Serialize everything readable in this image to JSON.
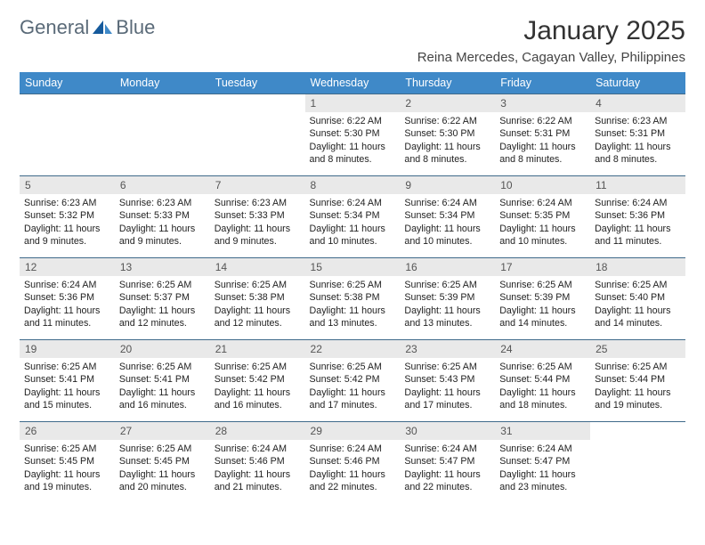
{
  "brand": {
    "name1": "General",
    "name2": "Blue"
  },
  "title": "January 2025",
  "location": "Reina Mercedes, Cagayan Valley, Philippines",
  "colors": {
    "header_bg": "#3f89c8",
    "daynum_bg": "#e9e9e9",
    "row_border": "#3f6a8a"
  },
  "weekdays": [
    "Sunday",
    "Monday",
    "Tuesday",
    "Wednesday",
    "Thursday",
    "Friday",
    "Saturday"
  ],
  "weeks": [
    [
      null,
      null,
      null,
      {
        "num": "1",
        "sunrise": "6:22 AM",
        "sunset": "5:30 PM",
        "daylight": "11 hours and 8 minutes."
      },
      {
        "num": "2",
        "sunrise": "6:22 AM",
        "sunset": "5:30 PM",
        "daylight": "11 hours and 8 minutes."
      },
      {
        "num": "3",
        "sunrise": "6:22 AM",
        "sunset": "5:31 PM",
        "daylight": "11 hours and 8 minutes."
      },
      {
        "num": "4",
        "sunrise": "6:23 AM",
        "sunset": "5:31 PM",
        "daylight": "11 hours and 8 minutes."
      }
    ],
    [
      {
        "num": "5",
        "sunrise": "6:23 AM",
        "sunset": "5:32 PM",
        "daylight": "11 hours and 9 minutes."
      },
      {
        "num": "6",
        "sunrise": "6:23 AM",
        "sunset": "5:33 PM",
        "daylight": "11 hours and 9 minutes."
      },
      {
        "num": "7",
        "sunrise": "6:23 AM",
        "sunset": "5:33 PM",
        "daylight": "11 hours and 9 minutes."
      },
      {
        "num": "8",
        "sunrise": "6:24 AM",
        "sunset": "5:34 PM",
        "daylight": "11 hours and 10 minutes."
      },
      {
        "num": "9",
        "sunrise": "6:24 AM",
        "sunset": "5:34 PM",
        "daylight": "11 hours and 10 minutes."
      },
      {
        "num": "10",
        "sunrise": "6:24 AM",
        "sunset": "5:35 PM",
        "daylight": "11 hours and 10 minutes."
      },
      {
        "num": "11",
        "sunrise": "6:24 AM",
        "sunset": "5:36 PM",
        "daylight": "11 hours and 11 minutes."
      }
    ],
    [
      {
        "num": "12",
        "sunrise": "6:24 AM",
        "sunset": "5:36 PM",
        "daylight": "11 hours and 11 minutes."
      },
      {
        "num": "13",
        "sunrise": "6:25 AM",
        "sunset": "5:37 PM",
        "daylight": "11 hours and 12 minutes."
      },
      {
        "num": "14",
        "sunrise": "6:25 AM",
        "sunset": "5:38 PM",
        "daylight": "11 hours and 12 minutes."
      },
      {
        "num": "15",
        "sunrise": "6:25 AM",
        "sunset": "5:38 PM",
        "daylight": "11 hours and 13 minutes."
      },
      {
        "num": "16",
        "sunrise": "6:25 AM",
        "sunset": "5:39 PM",
        "daylight": "11 hours and 13 minutes."
      },
      {
        "num": "17",
        "sunrise": "6:25 AM",
        "sunset": "5:39 PM",
        "daylight": "11 hours and 14 minutes."
      },
      {
        "num": "18",
        "sunrise": "6:25 AM",
        "sunset": "5:40 PM",
        "daylight": "11 hours and 14 minutes."
      }
    ],
    [
      {
        "num": "19",
        "sunrise": "6:25 AM",
        "sunset": "5:41 PM",
        "daylight": "11 hours and 15 minutes."
      },
      {
        "num": "20",
        "sunrise": "6:25 AM",
        "sunset": "5:41 PM",
        "daylight": "11 hours and 16 minutes."
      },
      {
        "num": "21",
        "sunrise": "6:25 AM",
        "sunset": "5:42 PM",
        "daylight": "11 hours and 16 minutes."
      },
      {
        "num": "22",
        "sunrise": "6:25 AM",
        "sunset": "5:42 PM",
        "daylight": "11 hours and 17 minutes."
      },
      {
        "num": "23",
        "sunrise": "6:25 AM",
        "sunset": "5:43 PM",
        "daylight": "11 hours and 17 minutes."
      },
      {
        "num": "24",
        "sunrise": "6:25 AM",
        "sunset": "5:44 PM",
        "daylight": "11 hours and 18 minutes."
      },
      {
        "num": "25",
        "sunrise": "6:25 AM",
        "sunset": "5:44 PM",
        "daylight": "11 hours and 19 minutes."
      }
    ],
    [
      {
        "num": "26",
        "sunrise": "6:25 AM",
        "sunset": "5:45 PM",
        "daylight": "11 hours and 19 minutes."
      },
      {
        "num": "27",
        "sunrise": "6:25 AM",
        "sunset": "5:45 PM",
        "daylight": "11 hours and 20 minutes."
      },
      {
        "num": "28",
        "sunrise": "6:24 AM",
        "sunset": "5:46 PM",
        "daylight": "11 hours and 21 minutes."
      },
      {
        "num": "29",
        "sunrise": "6:24 AM",
        "sunset": "5:46 PM",
        "daylight": "11 hours and 22 minutes."
      },
      {
        "num": "30",
        "sunrise": "6:24 AM",
        "sunset": "5:47 PM",
        "daylight": "11 hours and 22 minutes."
      },
      {
        "num": "31",
        "sunrise": "6:24 AM",
        "sunset": "5:47 PM",
        "daylight": "11 hours and 23 minutes."
      },
      null
    ]
  ]
}
